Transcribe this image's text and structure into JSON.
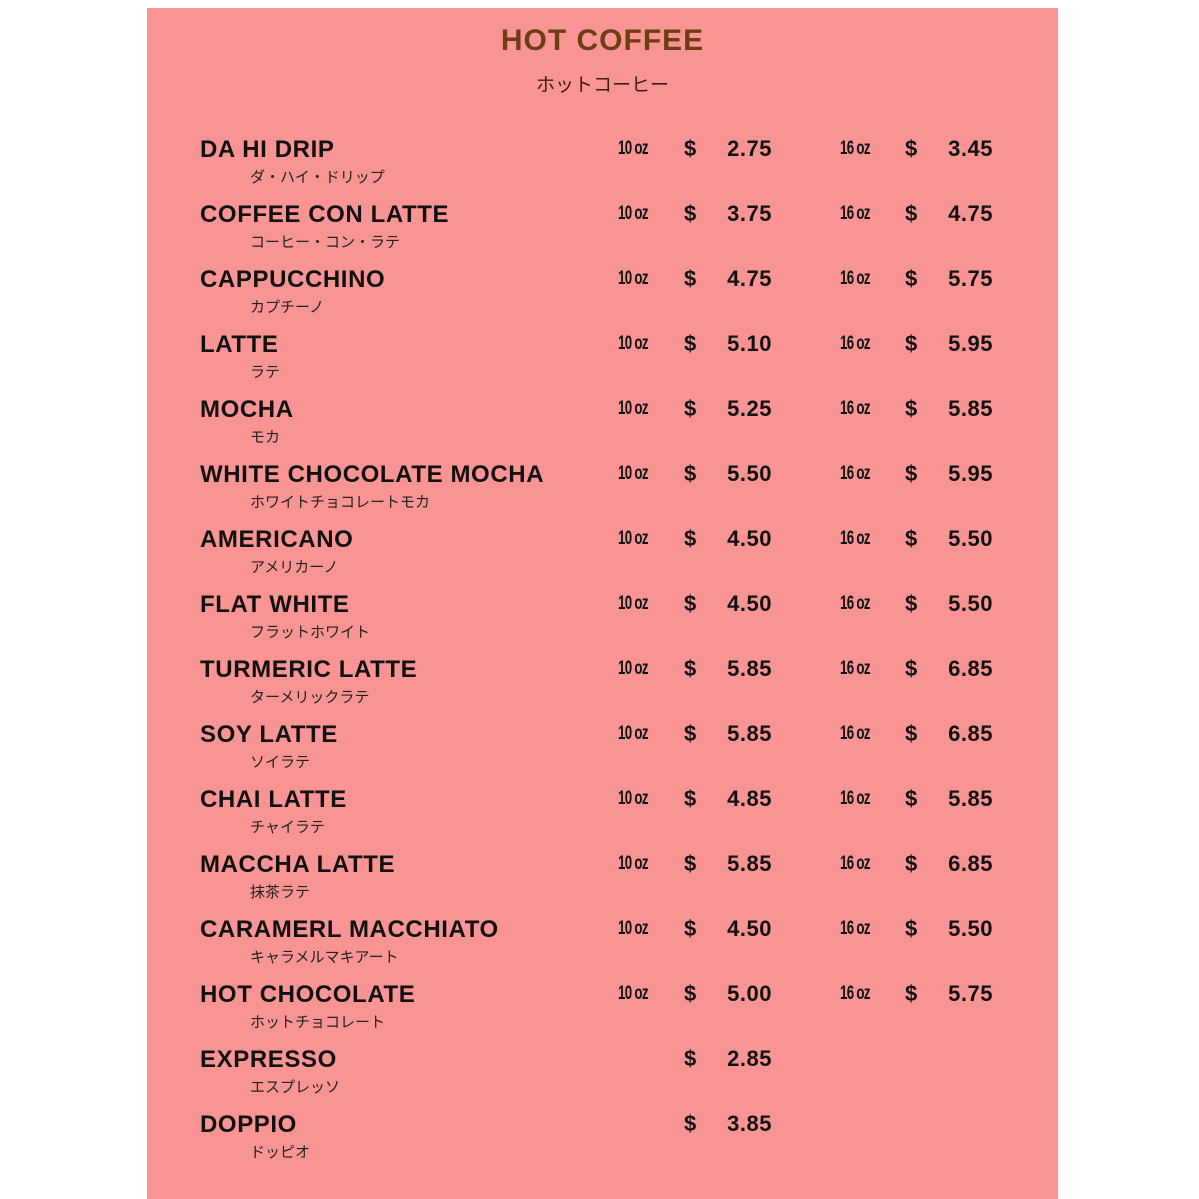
{
  "menu": {
    "title": "HOT COFFEE",
    "subtitle": "ホットコーヒー",
    "colors": {
      "background": "#f99494",
      "title": "#6e3d12"
    },
    "currency": "$",
    "items": [
      {
        "name": "DA HI DRIP",
        "jp": "ダ・ハイ・ドリップ",
        "small_size": "10 oz",
        "small_price": "2.75",
        "large_size": "16 oz",
        "large_price": "3.45"
      },
      {
        "name": "COFFEE CON LATTE",
        "jp": "コーヒー・コン・ラテ",
        "small_size": "10 oz",
        "small_price": "3.75",
        "large_size": "16 oz",
        "large_price": "4.75"
      },
      {
        "name": "CAPPUCCHINO",
        "jp": "カプチーノ",
        "small_size": "10 oz",
        "small_price": "4.75",
        "large_size": "16 oz",
        "large_price": "5.75"
      },
      {
        "name": "LATTE",
        "jp": "ラテ",
        "small_size": "10 oz",
        "small_price": "5.10",
        "large_size": "16 oz",
        "large_price": "5.95"
      },
      {
        "name": "MOCHA",
        "jp": "モカ",
        "small_size": "10 oz",
        "small_price": "5.25",
        "large_size": "16 oz",
        "large_price": "5.85"
      },
      {
        "name": "WHITE CHOCOLATE MOCHA",
        "jp": "ホワイトチョコレートモカ",
        "small_size": "10 oz",
        "small_price": "5.50",
        "large_size": "16 oz",
        "large_price": "5.95"
      },
      {
        "name": "AMERICANO",
        "jp": "アメリカーノ",
        "small_size": "10 oz",
        "small_price": "4.50",
        "large_size": "16 oz",
        "large_price": "5.50"
      },
      {
        "name": "FLAT WHITE",
        "jp": "フラットホワイト",
        "small_size": "10 oz",
        "small_price": "4.50",
        "large_size": "16 oz",
        "large_price": "5.50"
      },
      {
        "name": "TURMERIC LATTE",
        "jp": "ターメリックラテ",
        "small_size": "10 oz",
        "small_price": "5.85",
        "large_size": "16 oz",
        "large_price": "6.85"
      },
      {
        "name": "SOY LATTE",
        "jp": "ソイラテ",
        "small_size": "10 oz",
        "small_price": "5.85",
        "large_size": "16 oz",
        "large_price": "6.85"
      },
      {
        "name": "CHAI LATTE",
        "jp": "チャイラテ",
        "small_size": "10 oz",
        "small_price": "4.85",
        "large_size": "16 oz",
        "large_price": "5.85"
      },
      {
        "name": "MACCHA LATTE",
        "jp": "抹茶ラテ",
        "small_size": "10 oz",
        "small_price": "5.85",
        "large_size": "16 oz",
        "large_price": "6.85"
      },
      {
        "name": "CARAMERL MACCHIATO",
        "jp": "キャラメルマキアート",
        "small_size": "10 oz",
        "small_price": "4.50",
        "large_size": "16 oz",
        "large_price": "5.50"
      },
      {
        "name": "HOT CHOCOLATE",
        "jp": "ホットチョコレート",
        "small_size": "10 oz",
        "small_price": "5.00",
        "large_size": "16 oz",
        "large_price": "5.75"
      },
      {
        "name": "EXPRESSO",
        "jp": "エスプレッソ",
        "small_price": "2.85"
      },
      {
        "name": "DOPPIO",
        "jp": "ドッピオ",
        "small_price": "3.85"
      }
    ]
  }
}
